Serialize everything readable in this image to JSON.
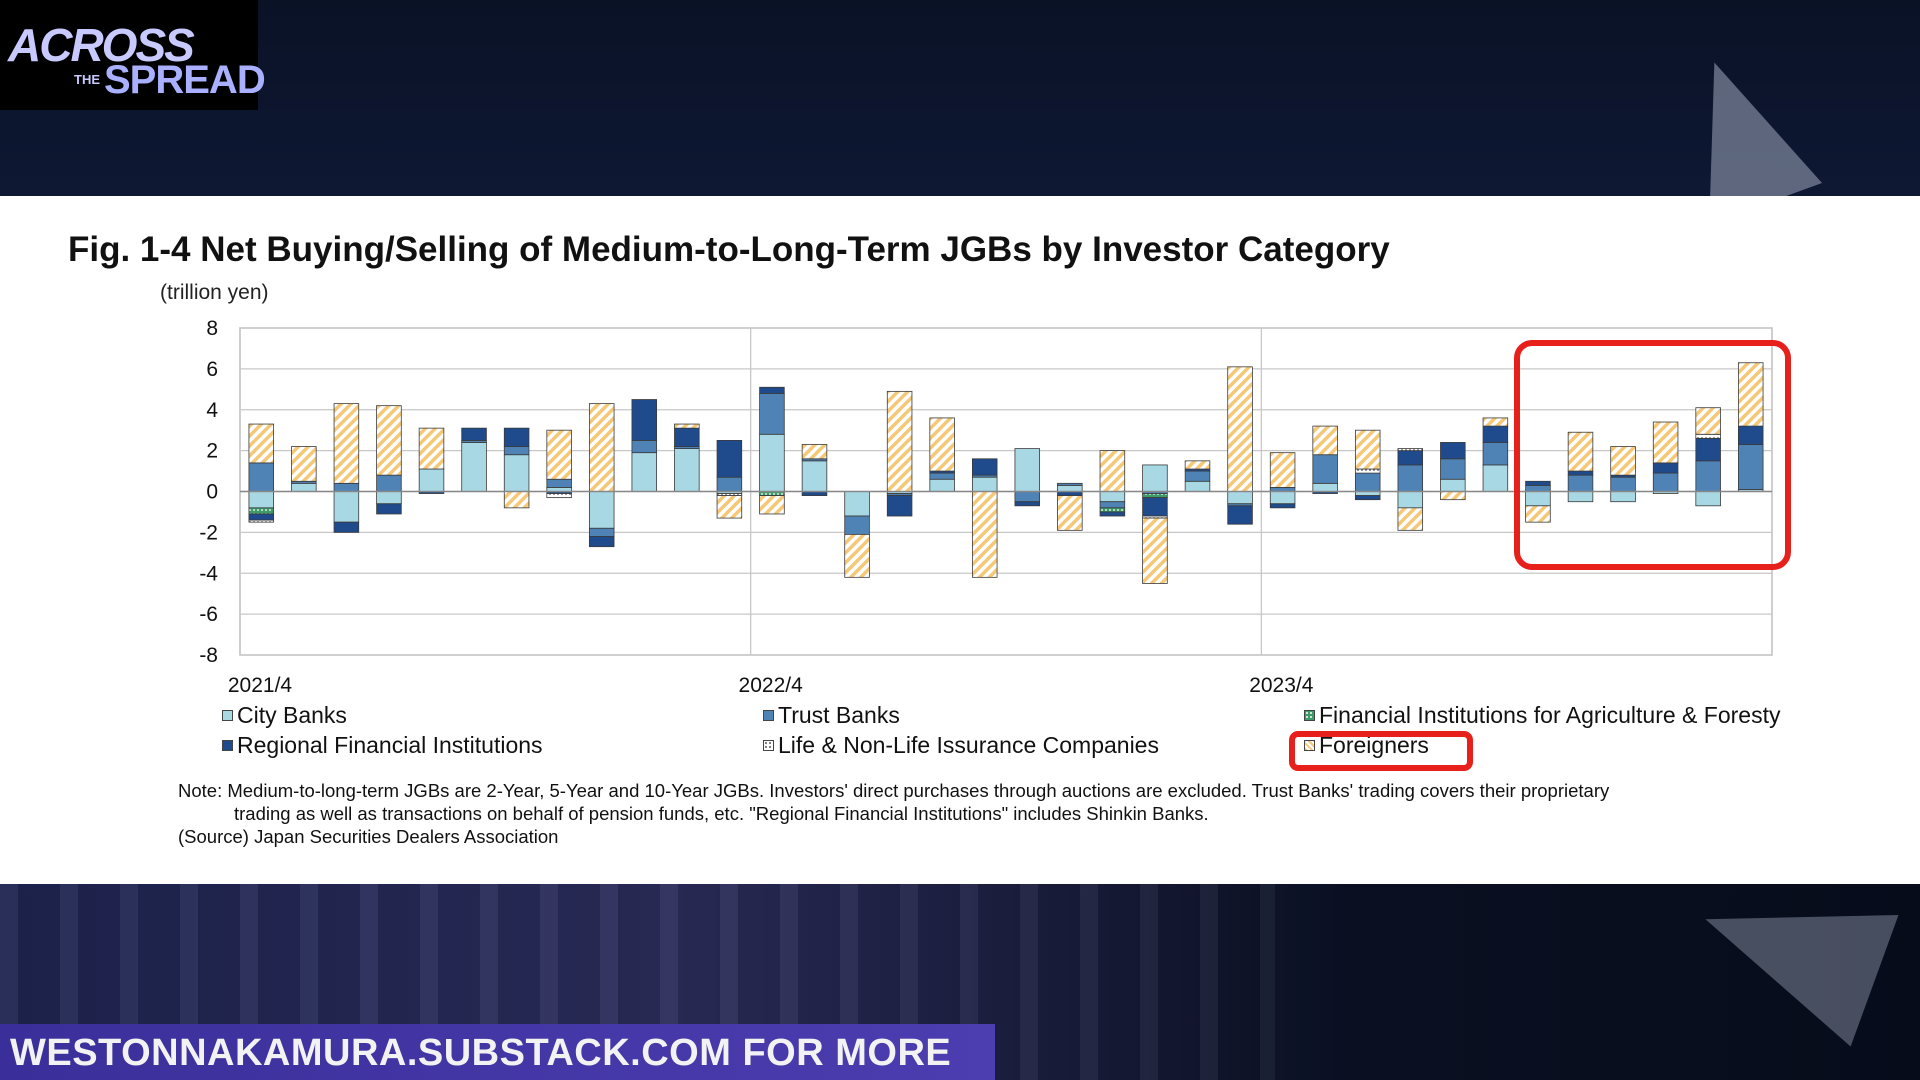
{
  "branding": {
    "logo_line1": "ACROSS",
    "logo_line2": "THE",
    "logo_line3": "SPREAD",
    "footer": "WESTONNAKAMURA.SUBSTACK.COM FOR MORE"
  },
  "figure": {
    "title": "Fig. 1-4 Net Buying/Selling of Medium-to-Long-Term JGBs by Investor Category",
    "unit": "(trillion yen)",
    "note_line1": "Note: Medium-to-long-term JGBs are 2-Year, 5-Year and 10-Year JGBs. Investors' direct purchases through auctions are excluded. Trust Banks' trading covers their proprietary",
    "note_line2": "trading as well as transactions on behalf of pension funds, etc. \"Regional Financial Institutions\" includes Shinkin Banks.",
    "source": "(Source) Japan Securities Dealers Association"
  },
  "colors": {
    "city_banks": "#a8d8e4",
    "trust_banks": "#4f83b5",
    "agri": "#3d9c6a",
    "regional": "#1f4a8c",
    "insurance": "#ffffff",
    "foreigners_fill": "#f5c878",
    "highlight": "#e8201c"
  },
  "chart_data": {
    "type": "bar",
    "stacked": true,
    "ylabel": "(trillion yen)",
    "ylim": [
      -8,
      8
    ],
    "yticks": [
      8,
      6,
      4,
      2,
      0,
      -2,
      -4,
      -6,
      -8
    ],
    "xtick_labels": [
      "2021/4",
      "2022/4",
      "2023/4"
    ],
    "xtick_positions": [
      0,
      12,
      24
    ],
    "grid": true,
    "legend_position": "bottom",
    "series": [
      {
        "name": "City Banks",
        "key": "city",
        "values": [
          -0.8,
          0.4,
          -1.5,
          -0.6,
          1.1,
          2.4,
          1.8,
          0.2,
          -1.8,
          1.9,
          2.1,
          -0.1,
          2.8,
          1.5,
          -1.2,
          -0.1,
          0.6,
          0.7,
          2.1,
          0.3,
          -0.5,
          1.3,
          0.5,
          -0.6,
          -0.6,
          0.4,
          -0.2,
          -0.8,
          0.6,
          1.3,
          -0.7,
          -0.5,
          -0.5,
          -0.1,
          -0.7,
          0.1
        ]
      },
      {
        "name": "Trust Banks",
        "key": "trust",
        "values": [
          1.4,
          0.1,
          0.4,
          0.8,
          0.0,
          0.1,
          0.4,
          0.4,
          -0.4,
          0.6,
          0.1,
          0.7,
          2.0,
          0.1,
          -0.9,
          -0.1,
          0.3,
          0.1,
          -0.5,
          0.1,
          -0.3,
          -0.1,
          0.5,
          -0.1,
          0.2,
          1.4,
          0.9,
          1.3,
          1.0,
          1.1,
          0.3,
          0.8,
          0.7,
          0.9,
          1.5,
          2.2
        ]
      },
      {
        "name": "Financial Institutions for Agriculture & Foresty",
        "key": "agri",
        "values": [
          -0.3,
          0.0,
          0.0,
          0.0,
          0.0,
          0.0,
          0.0,
          0.0,
          0.0,
          0.0,
          0.0,
          0.0,
          -0.2,
          0.0,
          0.0,
          0.0,
          0.0,
          0.0,
          0.0,
          0.0,
          -0.2,
          -0.2,
          0.0,
          0.0,
          0.0,
          0.0,
          0.0,
          0.0,
          0.0,
          0.0,
          0.0,
          0.0,
          0.0,
          0.0,
          0.0,
          0.0
        ]
      },
      {
        "name": "Regional Financial Institutions",
        "key": "regional",
        "values": [
          -0.3,
          0.0,
          -0.5,
          -0.5,
          -0.1,
          0.6,
          0.9,
          -0.1,
          -0.5,
          2.0,
          0.9,
          1.8,
          0.3,
          -0.2,
          0.0,
          -1.0,
          0.1,
          0.8,
          -0.2,
          -0.2,
          -0.2,
          -0.9,
          0.1,
          -0.9,
          -0.2,
          -0.1,
          -0.2,
          0.7,
          0.8,
          0.8,
          0.2,
          0.2,
          0.1,
          0.5,
          1.1,
          0.9
        ]
      },
      {
        "name": "Life & Non-Life Issurance Companies",
        "key": "insurance",
        "values": [
          -0.1,
          0.0,
          0.0,
          0.0,
          0.0,
          0.0,
          0.0,
          -0.2,
          0.0,
          0.0,
          0.0,
          -0.1,
          0.0,
          0.0,
          0.0,
          0.0,
          0.0,
          0.0,
          0.0,
          0.0,
          0.0,
          -0.1,
          0.0,
          0.0,
          0.0,
          0.0,
          0.2,
          0.1,
          0.0,
          0.0,
          0.0,
          0.0,
          0.0,
          0.0,
          0.2,
          0.0
        ]
      },
      {
        "name": "Foreigners",
        "key": "foreigners",
        "values": [
          1.9,
          1.7,
          3.9,
          3.4,
          2.0,
          0.0,
          -0.8,
          2.4,
          4.3,
          0.0,
          0.2,
          -1.1,
          -0.9,
          0.7,
          -2.1,
          4.9,
          2.6,
          -4.2,
          0.0,
          -1.7,
          2.0,
          -3.2,
          0.4,
          6.1,
          1.7,
          1.4,
          1.9,
          -1.1,
          -0.4,
          0.4,
          -0.8,
          1.9,
          1.4,
          2.0,
          1.3,
          3.1
        ]
      }
    ]
  },
  "legend": [
    {
      "label": "City Banks",
      "key": "city"
    },
    {
      "label": "Trust Banks",
      "key": "trust"
    },
    {
      "label": "Financial Institutions for Agriculture & Foresty",
      "key": "agri"
    },
    {
      "label": "Regional Financial Institutions",
      "key": "regional"
    },
    {
      "label": "Life & Non-Life Issurance Companies",
      "key": "insurance"
    },
    {
      "label": "Foreigners",
      "key": "foreigners"
    }
  ]
}
